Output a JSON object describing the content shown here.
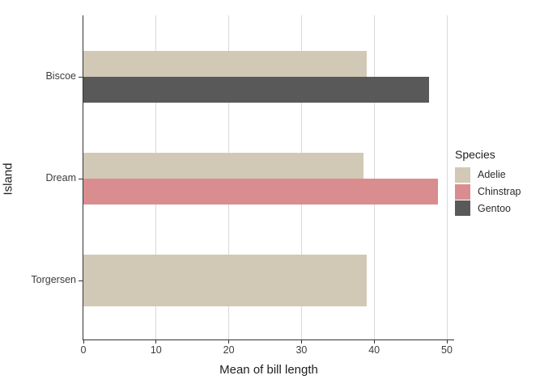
{
  "chart_data": {
    "type": "bar",
    "orientation": "horizontal",
    "title": "",
    "xlabel": "Mean of bill length",
    "ylabel": "Island",
    "xlim": [
      0,
      50
    ],
    "xticks": [
      0,
      10,
      20,
      30,
      40,
      50
    ],
    "categories": [
      "Biscoe",
      "Dream",
      "Torgersen"
    ],
    "legend": {
      "title": "Species",
      "position": "right"
    },
    "series": [
      {
        "name": "Adelie",
        "color": "#d1c9b5",
        "values": [
          38.98,
          38.5,
          38.95
        ]
      },
      {
        "name": "Chinstrap",
        "color": "#d98d8f",
        "values": [
          null,
          48.83,
          null
        ]
      },
      {
        "name": "Gentoo",
        "color": "#595959",
        "values": [
          47.5,
          null,
          null
        ]
      }
    ],
    "grid": "major-x-only",
    "style": {
      "panel_background": "#ffffff",
      "gridline_color": "#d8d8d8",
      "axis_color": "#333333",
      "tick_text_color": "#3c3c3c",
      "title_text_color": "#1f1f1f"
    }
  }
}
